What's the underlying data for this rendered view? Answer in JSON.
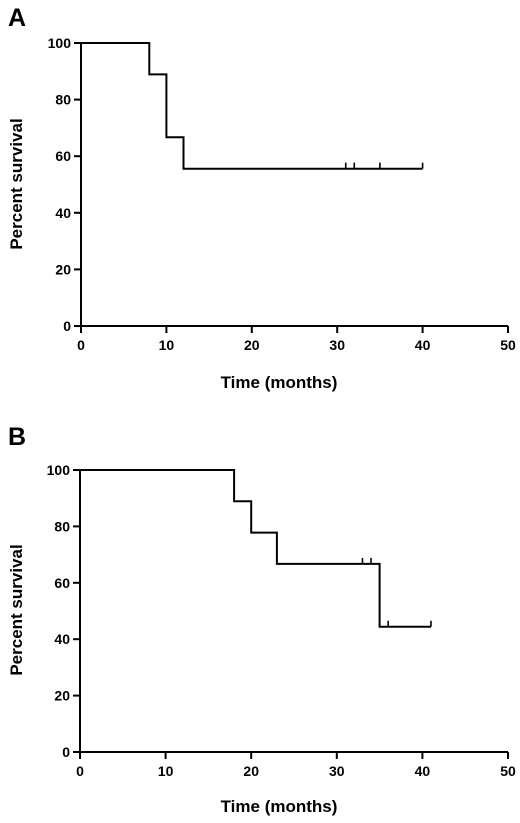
{
  "chart_data": [
    {
      "type": "line",
      "subtype": "kaplan-meier-step",
      "panel_label": "A",
      "title": "",
      "xlabel": "Time (months)",
      "ylabel": "Percent survival",
      "xlim": [
        0,
        50
      ],
      "ylim": [
        0,
        100
      ],
      "xticks": [
        0,
        10,
        20,
        30,
        40,
        50
      ],
      "yticks": [
        0,
        20,
        40,
        60,
        80,
        100
      ],
      "grid": false,
      "legend": "none",
      "series": [
        {
          "x": [
            0,
            8,
            10,
            12,
            40
          ],
          "y": [
            100,
            88.9,
            66.7,
            55.6,
            55.6
          ],
          "censored": [
            {
              "x": 31,
              "y": 55.6
            },
            {
              "x": 32,
              "y": 55.6
            },
            {
              "x": 35,
              "y": 55.6
            },
            {
              "x": 40,
              "y": 55.6
            }
          ]
        }
      ]
    },
    {
      "type": "line",
      "subtype": "kaplan-meier-step",
      "panel_label": "B",
      "title": "",
      "xlabel": "Time (months)",
      "ylabel": "Percent survival",
      "xlim": [
        0,
        50
      ],
      "ylim": [
        0,
        100
      ],
      "xticks": [
        0,
        10,
        20,
        30,
        40,
        50
      ],
      "yticks": [
        0,
        20,
        40,
        60,
        80,
        100
      ],
      "grid": false,
      "legend": "none",
      "series": [
        {
          "x": [
            0,
            18,
            20,
            23,
            35,
            41
          ],
          "y": [
            100,
            88.9,
            77.8,
            66.7,
            44.4,
            44.4
          ],
          "censored": [
            {
              "x": 33,
              "y": 66.7
            },
            {
              "x": 34,
              "y": 66.7
            },
            {
              "x": 36,
              "y": 44.4
            },
            {
              "x": 41,
              "y": 44.4
            }
          ]
        }
      ]
    }
  ]
}
